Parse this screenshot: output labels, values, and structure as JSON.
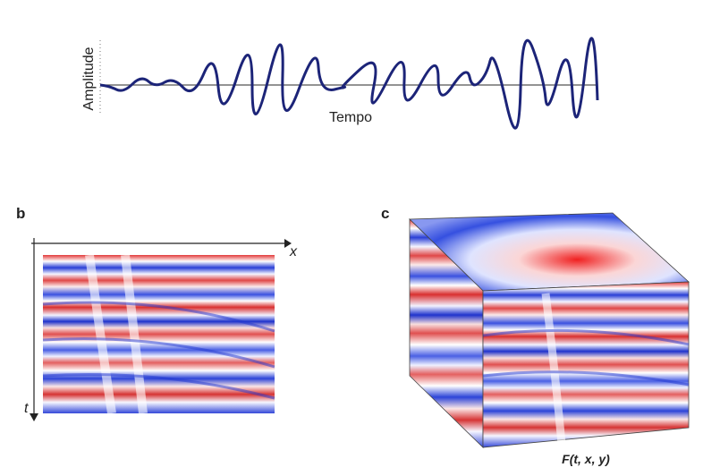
{
  "panel_a": {
    "y_label": "Amplitude",
    "x_label": "Tempo"
  },
  "panel_b": {
    "label": "b",
    "x_axis": "x",
    "t_axis": "t"
  },
  "panel_c": {
    "label": "c",
    "caption": "F(t, x, y)"
  }
}
